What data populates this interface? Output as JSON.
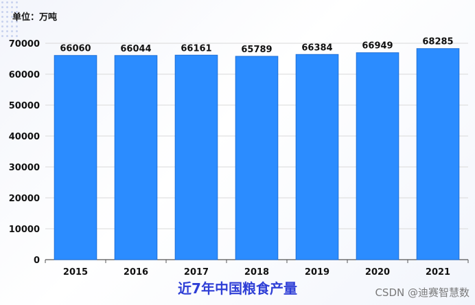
{
  "unit_label": "单位：万吨",
  "caption": "近7年中国粮食产量",
  "watermark": "CSDN @迪赛智慧数",
  "colors": {
    "bar": "#2b8cff",
    "bar_edge": "#1f6fd6",
    "grid": "#d9d9d9",
    "caption": "#2f3fd6"
  },
  "chart_data": {
    "type": "bar",
    "categories": [
      "2015",
      "2016",
      "2017",
      "2018",
      "2019",
      "2020",
      "2021"
    ],
    "values": [
      66060,
      66044,
      66161,
      65789,
      66384,
      66949,
      68285
    ],
    "ylim": [
      0,
      70000
    ],
    "yticks": [
      0,
      10000,
      20000,
      30000,
      40000,
      50000,
      60000,
      70000
    ],
    "grid": true,
    "data_labels": true
  }
}
